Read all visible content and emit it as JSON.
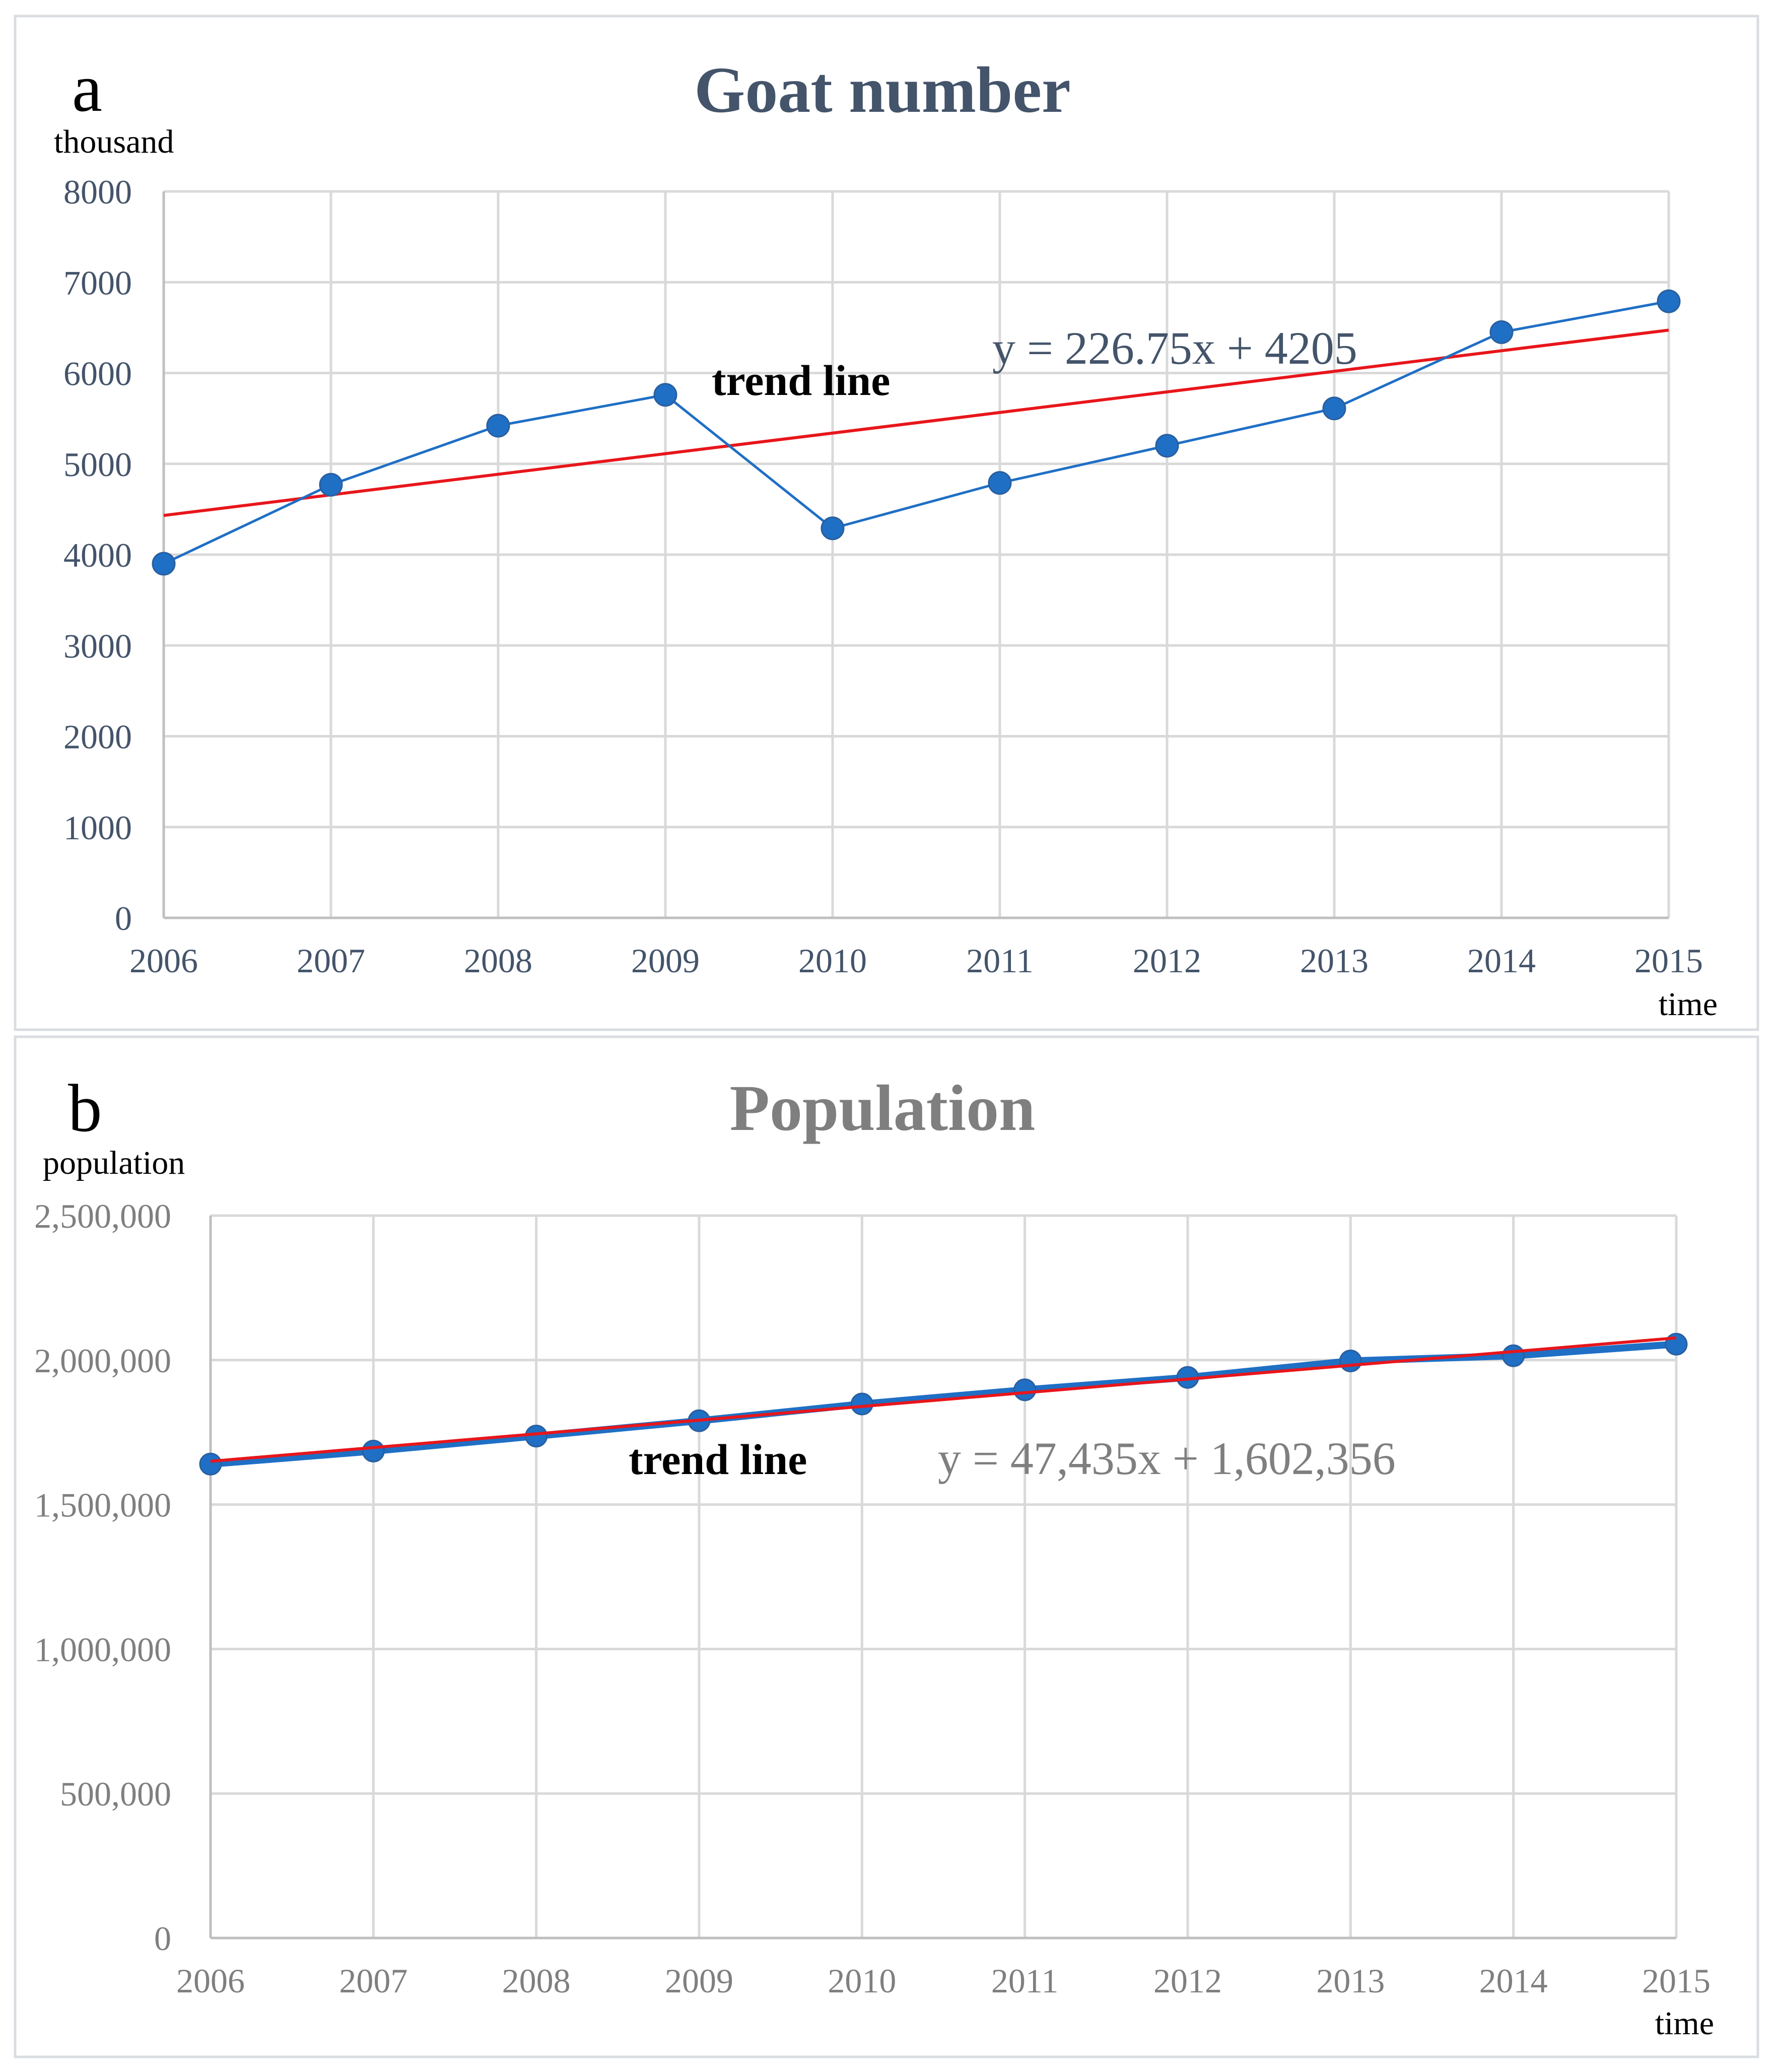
{
  "chart_data": [
    {
      "type": "line",
      "panel_letter": "a",
      "title": "Goat number",
      "ylabel": "thousand",
      "xlabel": "time",
      "x": [
        "2006",
        "2007",
        "2008",
        "2009",
        "2010",
        "2011",
        "2012",
        "2013",
        "2014",
        "2015"
      ],
      "ylim": [
        0,
        8000
      ],
      "yticks": [
        0,
        1000,
        2000,
        3000,
        4000,
        5000,
        6000,
        7000,
        8000
      ],
      "ytick_labels": [
        "0",
        "1000",
        "2000",
        "3000",
        "4000",
        "5000",
        "6000",
        "7000",
        "8000"
      ],
      "grid": true,
      "series": [
        {
          "values": [
            3900,
            4770,
            5420,
            5760,
            4290,
            4790,
            5200,
            5610,
            6450,
            6790
          ]
        }
      ],
      "trend": {
        "label": "trend line",
        "equation": "y = 226.75x + 4205",
        "slope": 226.75,
        "intercept": 4205
      },
      "colors": {
        "series": "#1f6fc5",
        "trend": "#e8161b",
        "text": "#44546a"
      }
    },
    {
      "type": "line",
      "panel_letter": "b",
      "title": "Population",
      "ylabel": "population",
      "xlabel": "time",
      "x": [
        "2006",
        "2007",
        "2008",
        "2009",
        "2010",
        "2011",
        "2012",
        "2013",
        "2014",
        "2015"
      ],
      "ylim": [
        0,
        2500000
      ],
      "yticks": [
        0,
        500000,
        1000000,
        1500000,
        2000000,
        2500000
      ],
      "ytick_labels": [
        "0",
        "500,000",
        "1,000,000",
        "1,500,000",
        "2,000,000",
        "2,500,000"
      ],
      "grid": true,
      "series": [
        {
          "values": [
            1640000,
            1685000,
            1737000,
            1790000,
            1848000,
            1897000,
            1940000,
            1997000,
            2015000,
            2055000
          ]
        }
      ],
      "trend": {
        "label": "trend line",
        "equation": "y = 47,435x + 1,602,356",
        "slope": 47435,
        "intercept": 1602356
      },
      "colors": {
        "series": "#1f6fc5",
        "trend": "#e8161b",
        "text": "#7f7f7f"
      }
    }
  ]
}
